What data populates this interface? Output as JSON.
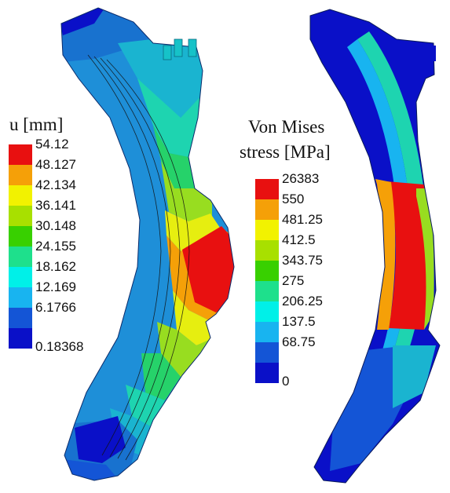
{
  "displacement_legend": {
    "title": "u [mm]",
    "values": [
      "54.12",
      "48.127",
      "42.134",
      "36.141",
      "30.148",
      "24.155",
      "18.162",
      "12.169",
      "6.1766",
      "0.18368"
    ],
    "colors": [
      "#e81010",
      "#f5a008",
      "#f2f200",
      "#a8e000",
      "#38d000",
      "#1ee08c",
      "#00f0e8",
      "#18b4f0",
      "#1455d6",
      "#0a10c8"
    ]
  },
  "stress_legend": {
    "title_line1": "Von Mises",
    "title_line2": "stress [MPa]",
    "values": [
      "26383",
      "550",
      "481.25",
      "412.5",
      "343.75",
      "275",
      "206.25",
      "137.5",
      "68.75",
      "0"
    ],
    "colors": [
      "#e81010",
      "#f5a008",
      "#f2f200",
      "#a8e000",
      "#38d000",
      "#1ee08c",
      "#00f0e8",
      "#18b4f0",
      "#1455d6",
      "#0a10c8"
    ]
  }
}
